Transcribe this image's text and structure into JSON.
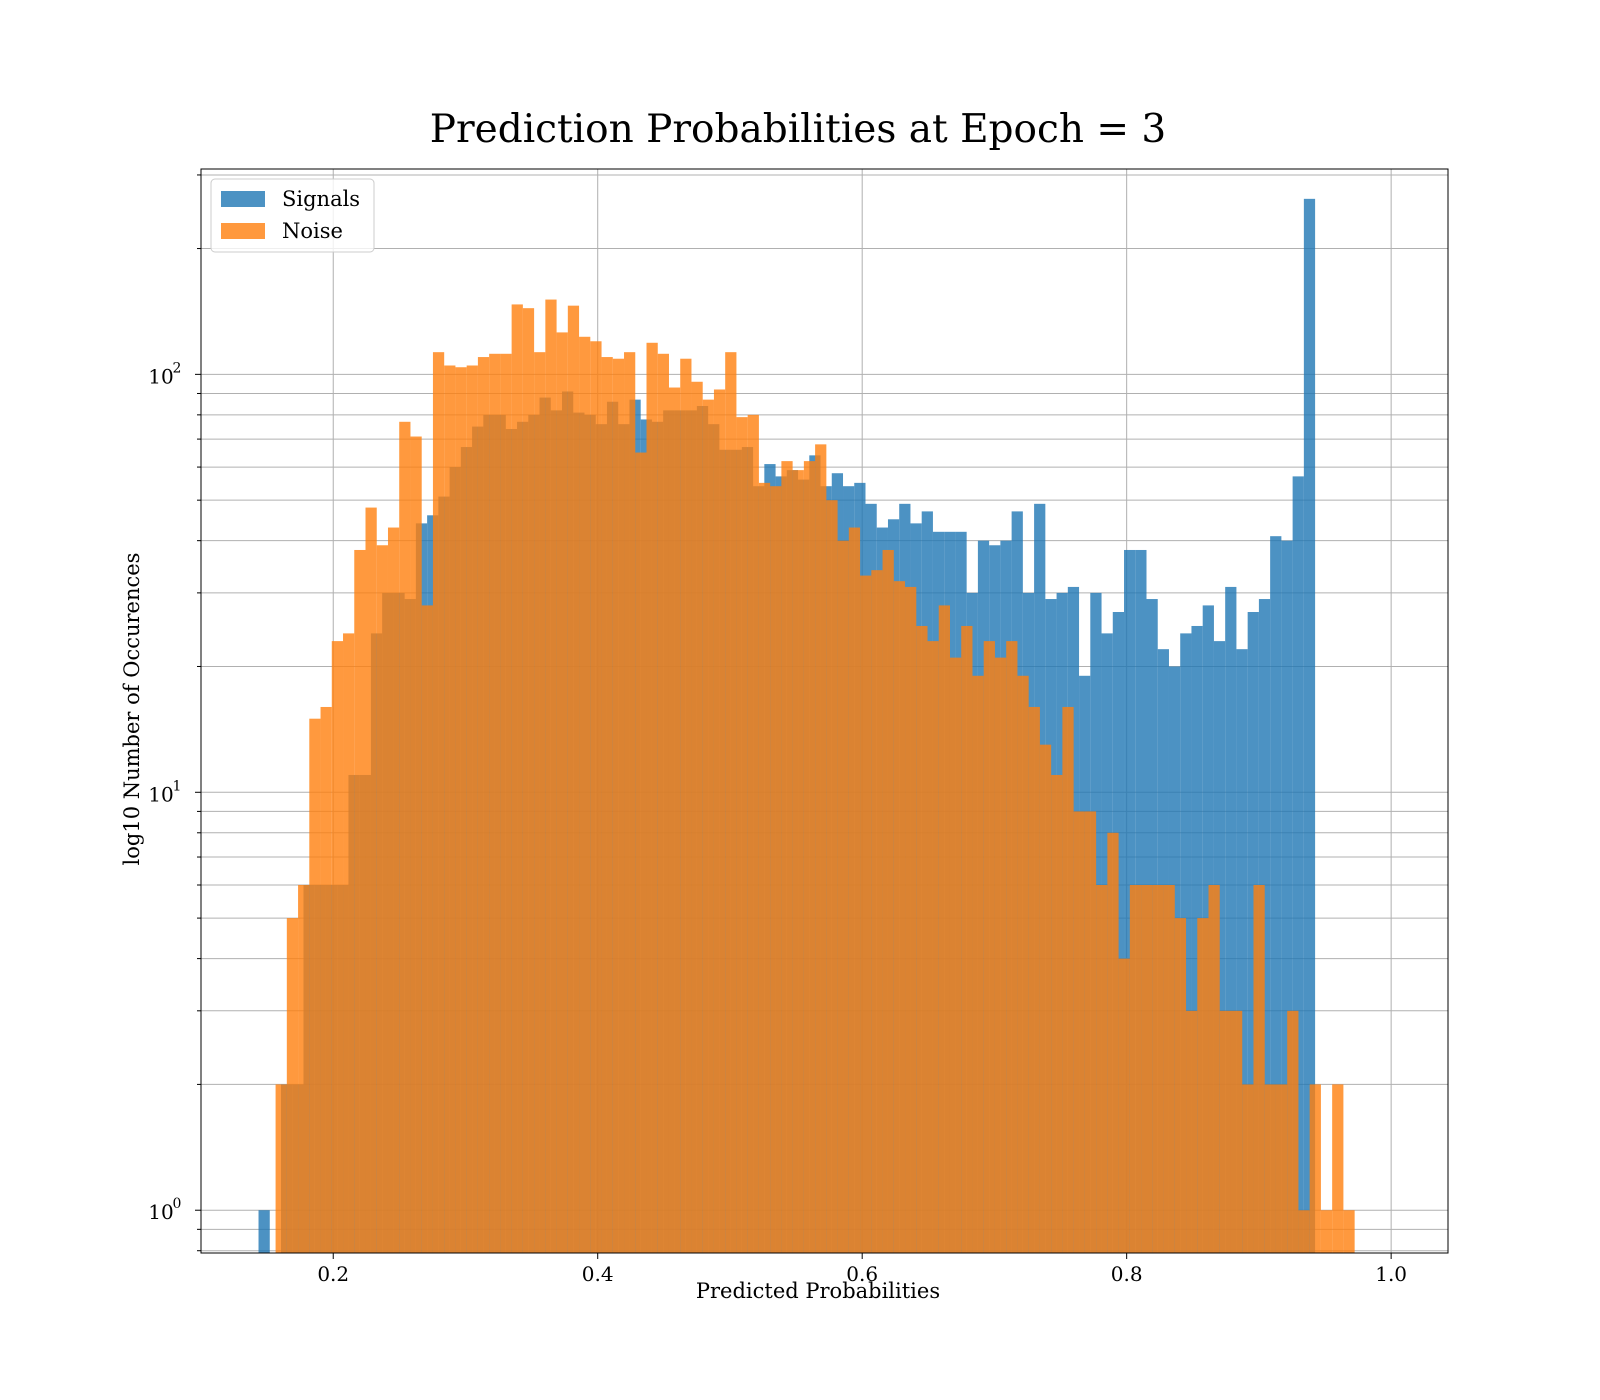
{
  "chart_data": {
    "type": "bar",
    "title": "Prediction Probabilities at Epoch = 3",
    "xlabel": "Predicted Probabilities",
    "ylabel": "log10 Number of Occurences",
    "xlim": [
      0.1,
      1.043
    ],
    "ylim": [
      0.79,
      310
    ],
    "yscale": "log",
    "grid": true,
    "legend_position": "top-left",
    "xticks": [
      {
        "value": 0.2,
        "label": "0.2"
      },
      {
        "value": 0.4,
        "label": "0.4"
      },
      {
        "value": 0.6,
        "label": "0.6"
      },
      {
        "value": 0.8,
        "label": "0.8"
      },
      {
        "value": 1.0,
        "label": "1.0"
      }
    ],
    "yticks": [
      {
        "value": 1,
        "label": "10",
        "exp": "0"
      },
      {
        "value": 10,
        "label": "10",
        "exp": "1"
      },
      {
        "value": 100,
        "label": "10",
        "exp": "2"
      }
    ],
    "series": [
      {
        "name": "Signals",
        "color": "#1f77b4",
        "opacity": 0.8,
        "bin_start": 0.1435,
        "bin_width": 0.0085,
        "values": [
          1,
          0,
          2,
          2,
          6,
          6,
          6,
          6,
          11,
          11,
          24,
          30,
          30,
          29,
          44,
          46,
          51,
          60,
          67,
          75,
          80,
          80,
          74,
          77,
          80,
          88,
          82,
          91,
          81,
          80,
          76,
          86,
          76,
          87,
          78,
          77,
          82,
          82,
          82,
          84,
          76,
          66,
          66,
          67,
          54,
          61,
          57,
          59,
          56,
          64,
          54,
          58,
          54,
          55,
          49,
          43,
          45,
          49,
          44,
          47,
          42,
          42,
          42,
          30,
          40,
          39,
          40,
          47,
          30,
          49,
          29,
          30,
          31,
          19,
          30,
          24,
          27,
          38,
          38,
          29,
          22,
          20,
          24,
          25,
          28,
          23,
          31,
          22,
          27,
          29,
          41,
          40,
          57,
          263
        ]
      },
      {
        "name": "Noise",
        "color": "#ff7f0e",
        "opacity": 0.8,
        "bin_start": 0.1479,
        "bin_width": 0.0085,
        "values": [
          0,
          2,
          5,
          6,
          15,
          16,
          23,
          24,
          38,
          48,
          39,
          43,
          77,
          71,
          28,
          113,
          105,
          104,
          105,
          110,
          112,
          112,
          147,
          144,
          113,
          151,
          126,
          146,
          123,
          120,
          110,
          109,
          113,
          65,
          119,
          112,
          93,
          109,
          96,
          87,
          92,
          113,
          79,
          80,
          55,
          54,
          62,
          59,
          62,
          68,
          50,
          40,
          43,
          33,
          34,
          38,
          32,
          31,
          25,
          23,
          28,
          21,
          25,
          19,
          23,
          21,
          23,
          19,
          16,
          13,
          11,
          16,
          9,
          9,
          6,
          8,
          4,
          6,
          6,
          6,
          6,
          5,
          3,
          5,
          6,
          3,
          3,
          2,
          6,
          2,
          2,
          3,
          1,
          2,
          1,
          2,
          1
        ]
      }
    ]
  }
}
